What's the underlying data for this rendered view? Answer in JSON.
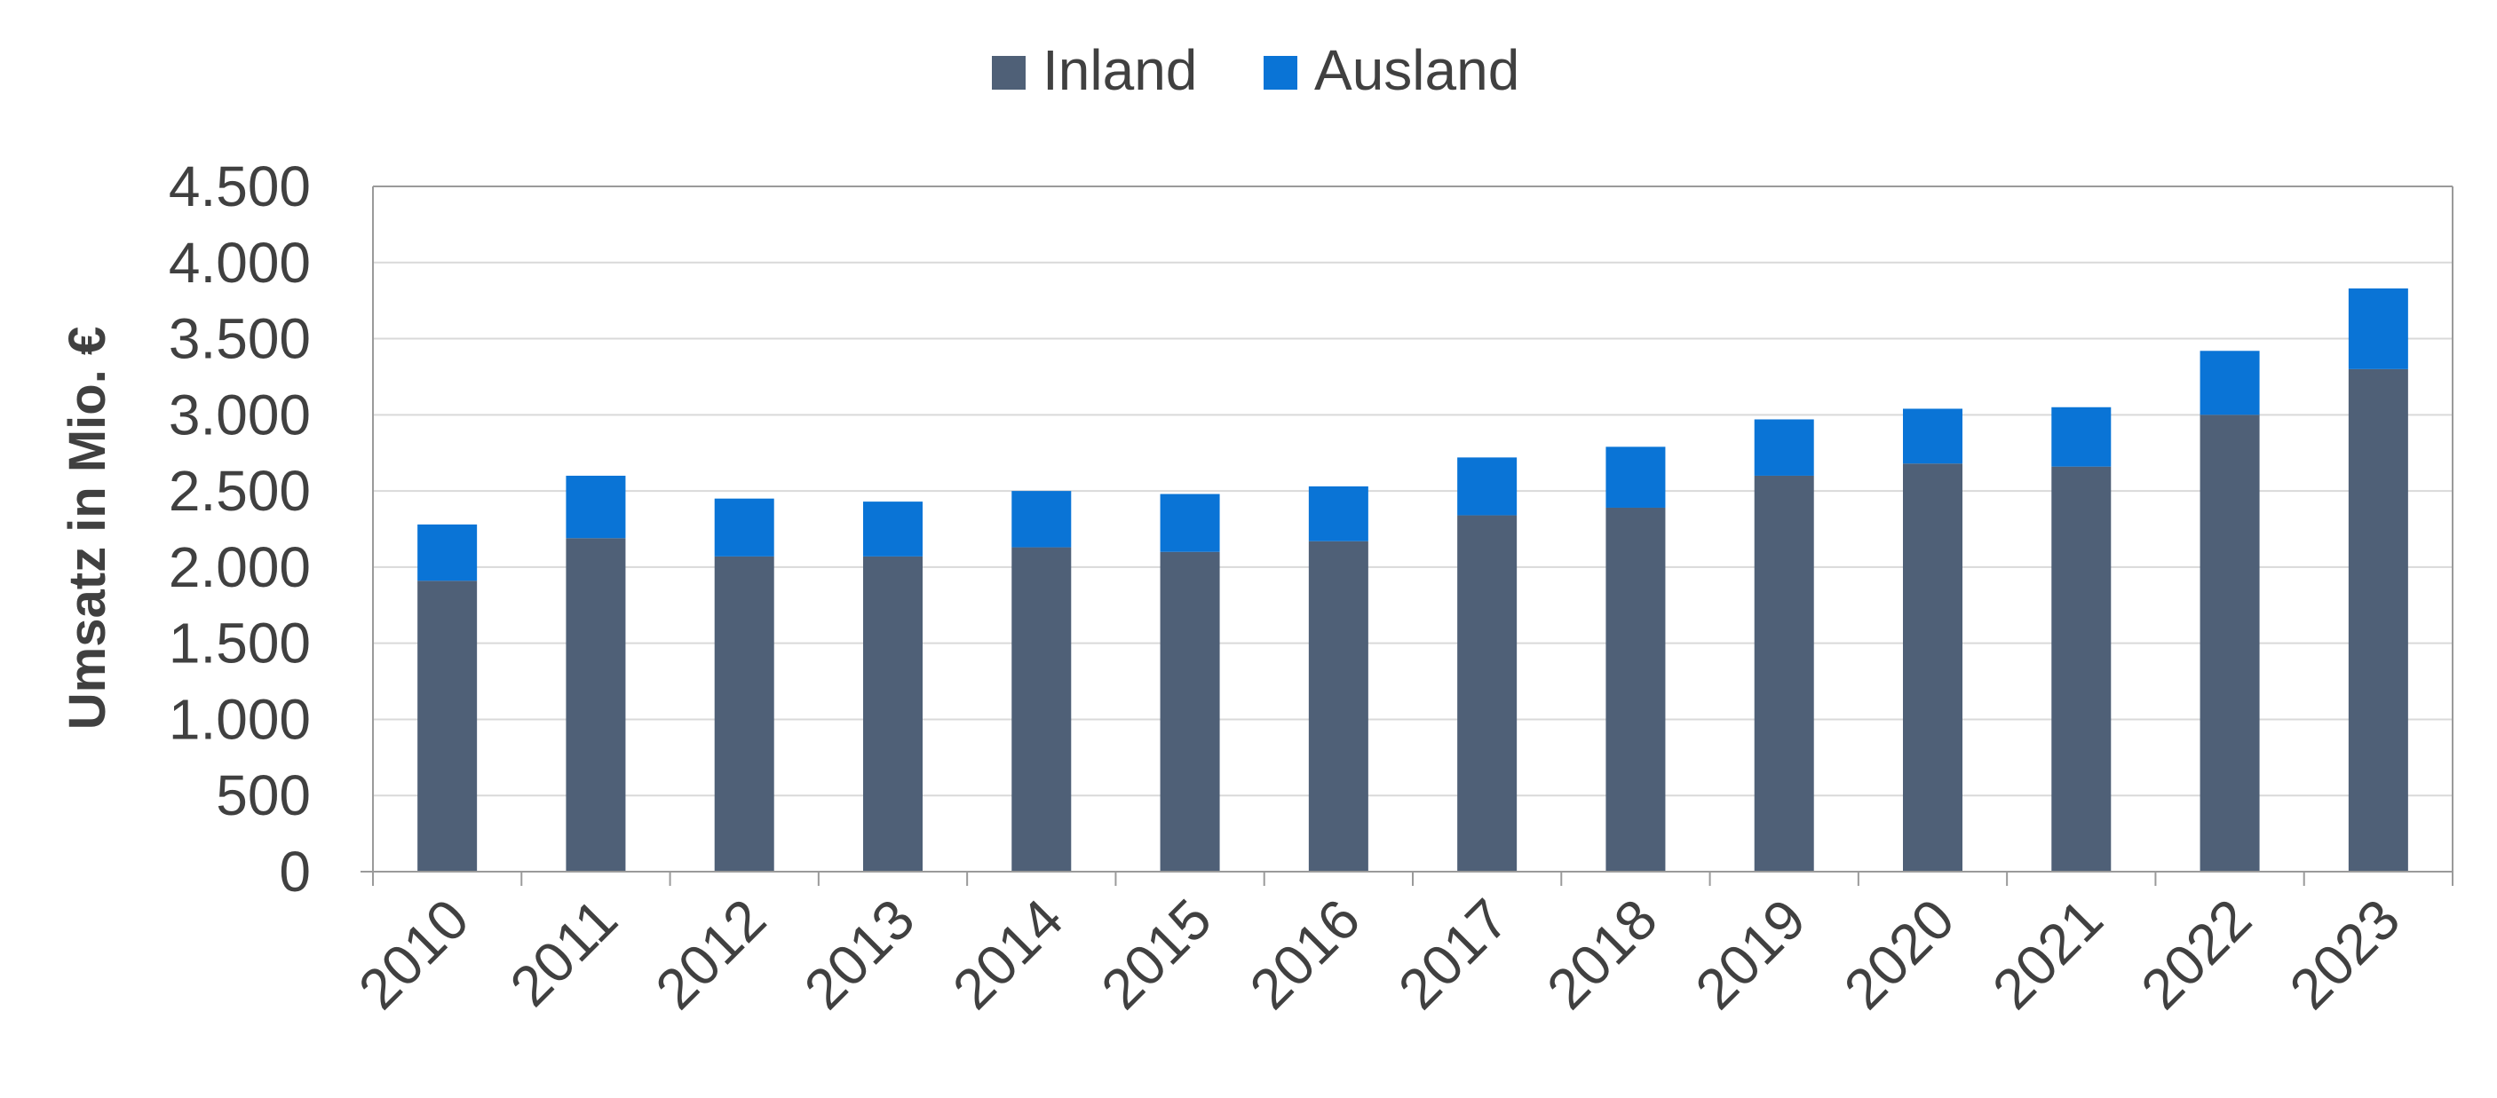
{
  "chart_data": {
    "type": "bar",
    "stacked": true,
    "categories": [
      "2010",
      "2011",
      "2012",
      "2013",
      "2014",
      "2015",
      "2016",
      "2017",
      "2018",
      "2019",
      "2020",
      "2021",
      "2022",
      "2023"
    ],
    "series": [
      {
        "name": "Inland",
        "color": "#4f6077",
        "values": [
          1910,
          2190,
          2070,
          2070,
          2130,
          2100,
          2170,
          2340,
          2390,
          2600,
          2680,
          2660,
          3000,
          3300
        ]
      },
      {
        "name": "Ausland",
        "color": "#0a74d6",
        "values": [
          370,
          410,
          380,
          360,
          370,
          380,
          360,
          380,
          400,
          370,
          360,
          390,
          420,
          530
        ]
      }
    ],
    "ylabel": "Umsatz in Mio. €",
    "xlabel": "",
    "ylim": [
      0,
      4500
    ],
    "yticks": [
      0,
      500,
      1000,
      1500,
      2000,
      2500,
      3000,
      3500,
      4000,
      4500
    ],
    "ytick_labels": [
      "0",
      "500",
      "1.000",
      "1.500",
      "2.000",
      "2.500",
      "3.000",
      "3.500",
      "4.000",
      "4.500"
    ],
    "grid": true,
    "legend_position": "top-center"
  }
}
